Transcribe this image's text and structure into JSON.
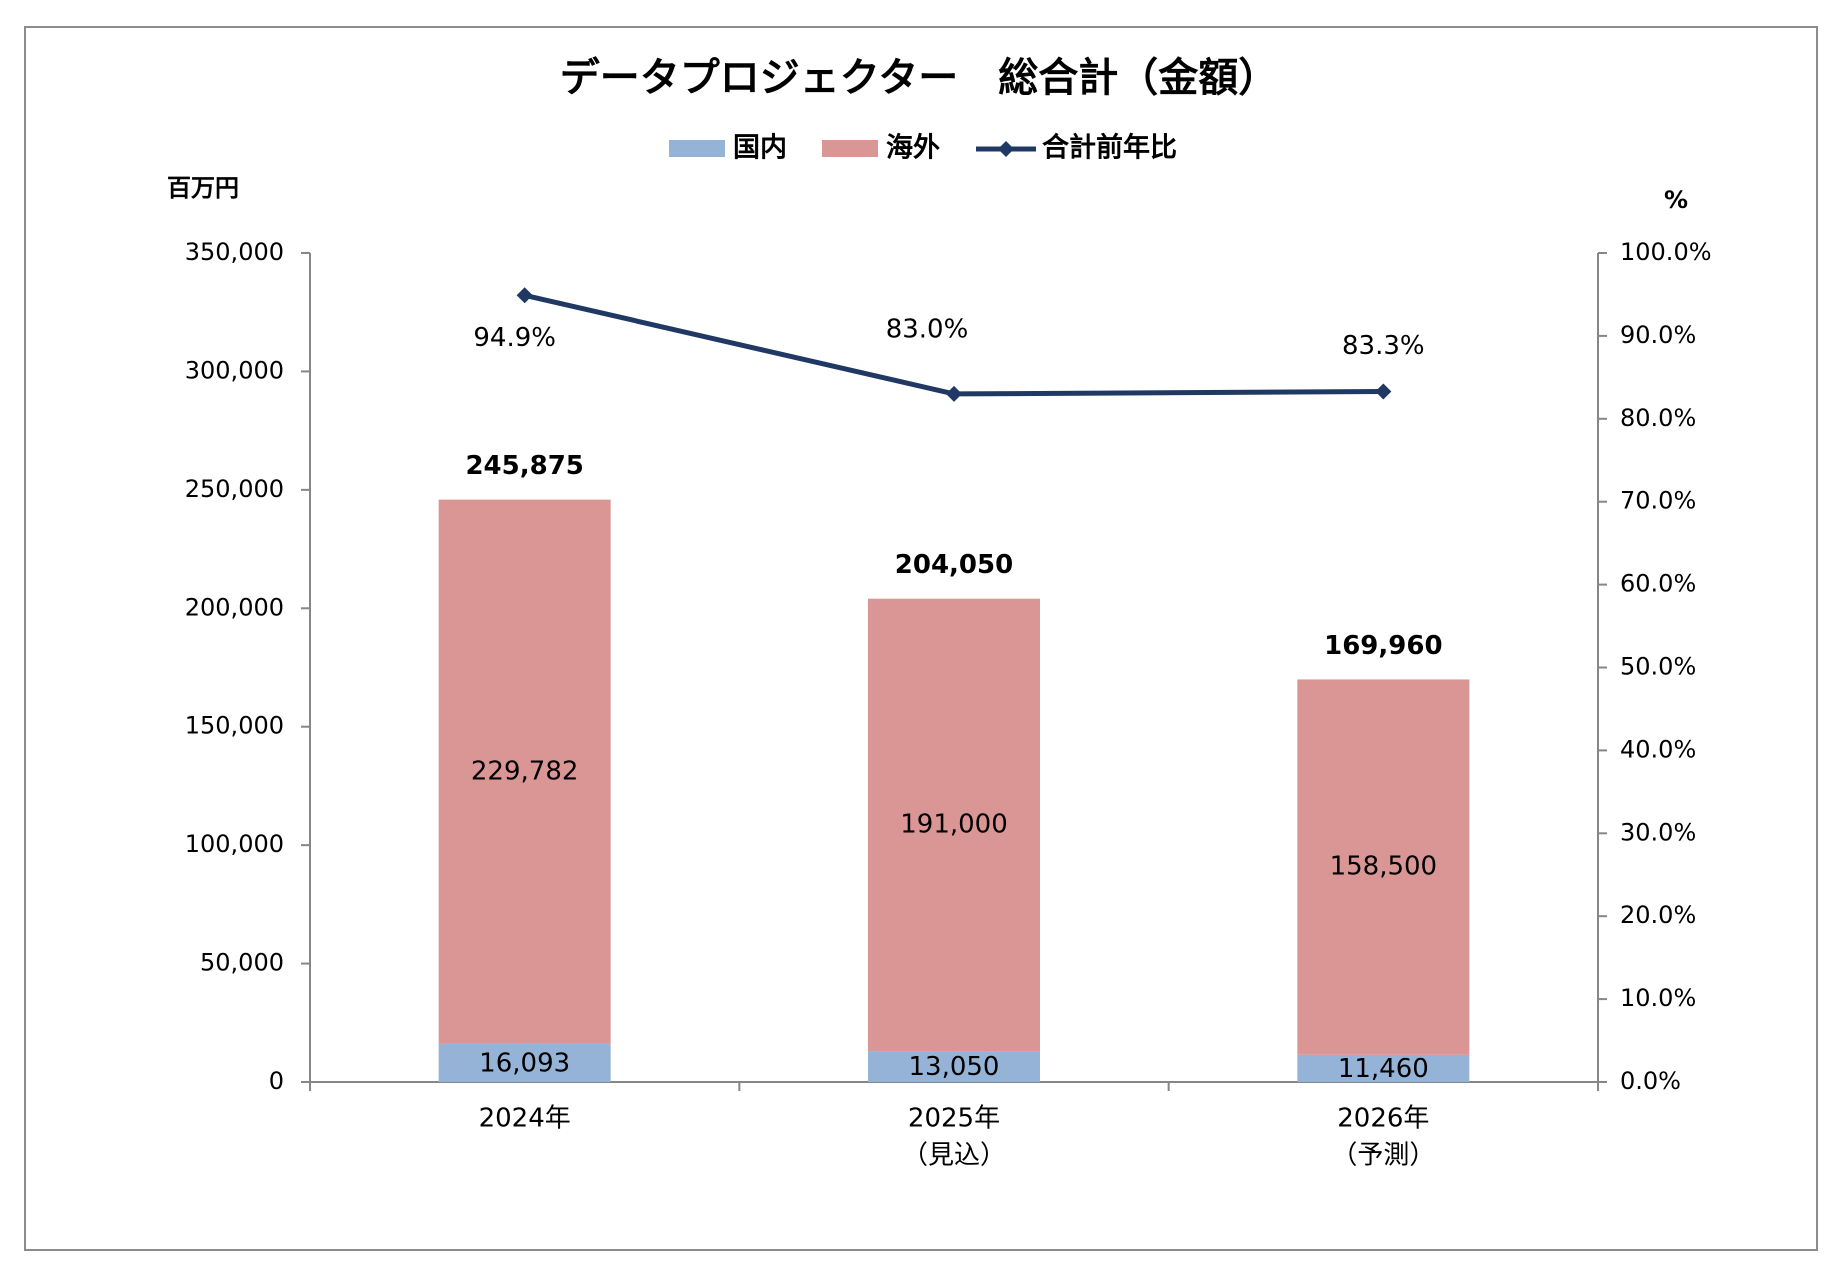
{
  "colors": {
    "domestic": "#95b3d7",
    "overseas": "#d99694",
    "line": "#1f3864",
    "axis": "#868686",
    "frame": "#8c8c8c"
  },
  "chart_data": {
    "type": "bar",
    "stacked": true,
    "title": "データプロジェクター　総合計（金額）",
    "y_unit": "百万円",
    "y2_unit": "%",
    "categories": [
      [
        "2024年"
      ],
      [
        "2025年",
        "（見込）"
      ],
      [
        "2026年",
        "（予測）"
      ]
    ],
    "series": [
      {
        "name": "国内",
        "type": "bar",
        "axis": "left",
        "color": "domestic",
        "values": [
          16093,
          13050,
          11460
        ],
        "labels": [
          "16,093",
          "13,050",
          "11,460"
        ]
      },
      {
        "name": "海外",
        "type": "bar",
        "axis": "left",
        "color": "overseas",
        "values": [
          229782,
          191000,
          158500
        ],
        "labels": [
          "229,782",
          "191,000",
          "158,500"
        ]
      },
      {
        "name": "合計前年比",
        "type": "line",
        "axis": "right",
        "color": "line",
        "values": [
          94.9,
          83.0,
          83.3
        ],
        "labels": [
          "94.9%",
          "83.0%",
          "83.3%"
        ]
      }
    ],
    "totals": {
      "values": [
        245875,
        204050,
        169960
      ],
      "labels": [
        "245,875",
        "204,050",
        "169,960"
      ]
    },
    "y_axis": {
      "min": 0,
      "max": 350000,
      "step": 50000,
      "tick_labels": [
        "0",
        "50,000",
        "100,000",
        "150,000",
        "200,000",
        "250,000",
        "300,000",
        "350,000"
      ]
    },
    "y2_axis": {
      "min": 0,
      "max": 100,
      "step": 10,
      "tick_labels": [
        "0.0%",
        "10.0%",
        "20.0%",
        "30.0%",
        "40.0%",
        "50.0%",
        "60.0%",
        "70.0%",
        "80.0%",
        "90.0%",
        "100.0%"
      ]
    },
    "legend_position": "top",
    "grid": false
  }
}
